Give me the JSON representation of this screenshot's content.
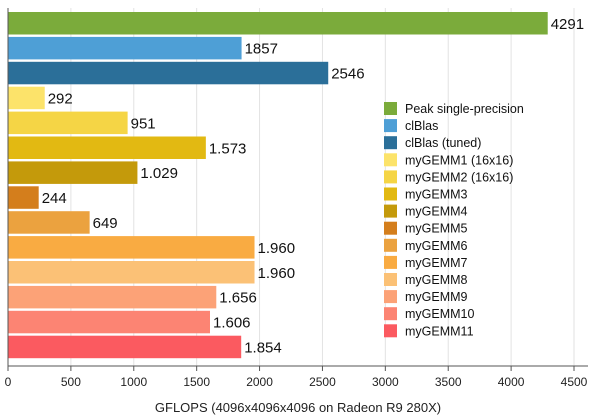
{
  "chart_data": {
    "type": "bar",
    "orientation": "horizontal",
    "xlabel": "GFLOPS (4096x4096x4096 on Radeon R9 280X)",
    "xlim": [
      0,
      4500
    ],
    "xticks": [
      0,
      500,
      1000,
      1500,
      2000,
      2500,
      3000,
      3500,
      4000,
      4500
    ],
    "grid": true,
    "legend": "right",
    "bars": [
      {
        "name": "Peak single-precision",
        "value": 4291,
        "label": "4291",
        "color": "#7bab3b"
      },
      {
        "name": "clBlas",
        "value": 1857,
        "label": "1857",
        "color": "#4e9fd6"
      },
      {
        "name": "clBlas (tuned)",
        "value": 2546,
        "label": "2546",
        "color": "#2b6f99"
      },
      {
        "name": "myGEMM1 (16x16)",
        "value": 292,
        "label": "292",
        "color": "#fce36a"
      },
      {
        "name": "myGEMM2 (16x16)",
        "value": 951,
        "label": "951",
        "color": "#f5d545"
      },
      {
        "name": "myGEMM3",
        "value": 1573,
        "label": "1.573",
        "color": "#e2b912"
      },
      {
        "name": "myGEMM4",
        "value": 1029,
        "label": "1.029",
        "color": "#c49a0b"
      },
      {
        "name": "myGEMM5",
        "value": 244,
        "label": "244",
        "color": "#d47e1c"
      },
      {
        "name": "myGEMM6",
        "value": 649,
        "label": "649",
        "color": "#eba23f"
      },
      {
        "name": "myGEMM7",
        "value": 1960,
        "label": "1.960",
        "color": "#f9ab42"
      },
      {
        "name": "myGEMM8",
        "value": 1960,
        "label": "1.960",
        "color": "#fbc176"
      },
      {
        "name": "myGEMM9",
        "value": 1656,
        "label": "1.656",
        "color": "#fca277"
      },
      {
        "name": "myGEMM10",
        "value": 1606,
        "label": "1.606",
        "color": "#fc8473"
      },
      {
        "name": "myGEMM11",
        "value": 1854,
        "label": "1.854",
        "color": "#fb5a60"
      }
    ]
  }
}
